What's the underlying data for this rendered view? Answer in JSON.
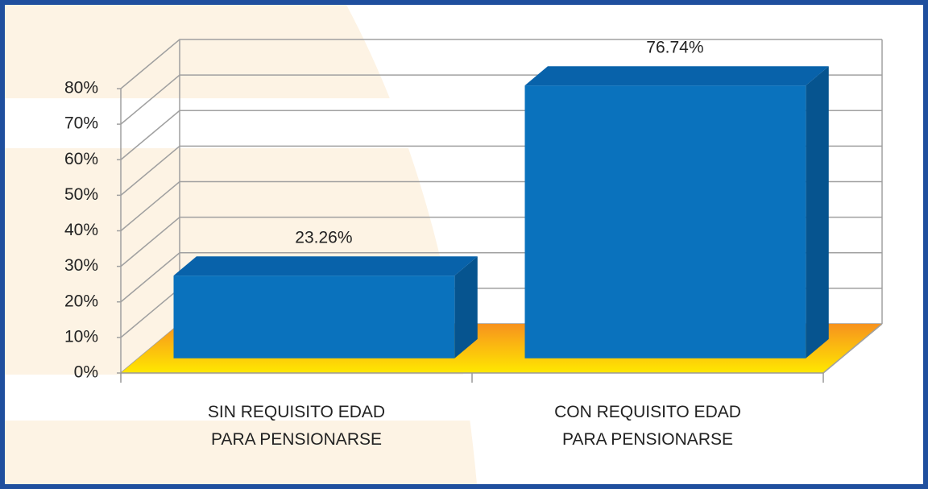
{
  "chart_data": {
    "type": "bar3d",
    "categories": [
      "SIN REQUISITO EDAD\nPARA PENSIONARSE",
      "CON REQUISITO EDAD\nPARA PENSIONARSE"
    ],
    "values": [
      23.26,
      76.74
    ],
    "value_labels": [
      "23.26%",
      "76.74%"
    ],
    "color": "#0a72bd",
    "ylim": [
      0,
      80
    ],
    "yticks": [
      {
        "value": 0,
        "label": "0%"
      },
      {
        "value": 10,
        "label": "10%"
      },
      {
        "value": 20,
        "label": "20%"
      },
      {
        "value": 30,
        "label": "30%"
      },
      {
        "value": 40,
        "label": "40%"
      },
      {
        "value": 50,
        "label": "50%"
      },
      {
        "value": 60,
        "label": "60%"
      },
      {
        "value": 70,
        "label": "70%"
      },
      {
        "value": 80,
        "label": "80%"
      }
    ],
    "grid": true
  }
}
